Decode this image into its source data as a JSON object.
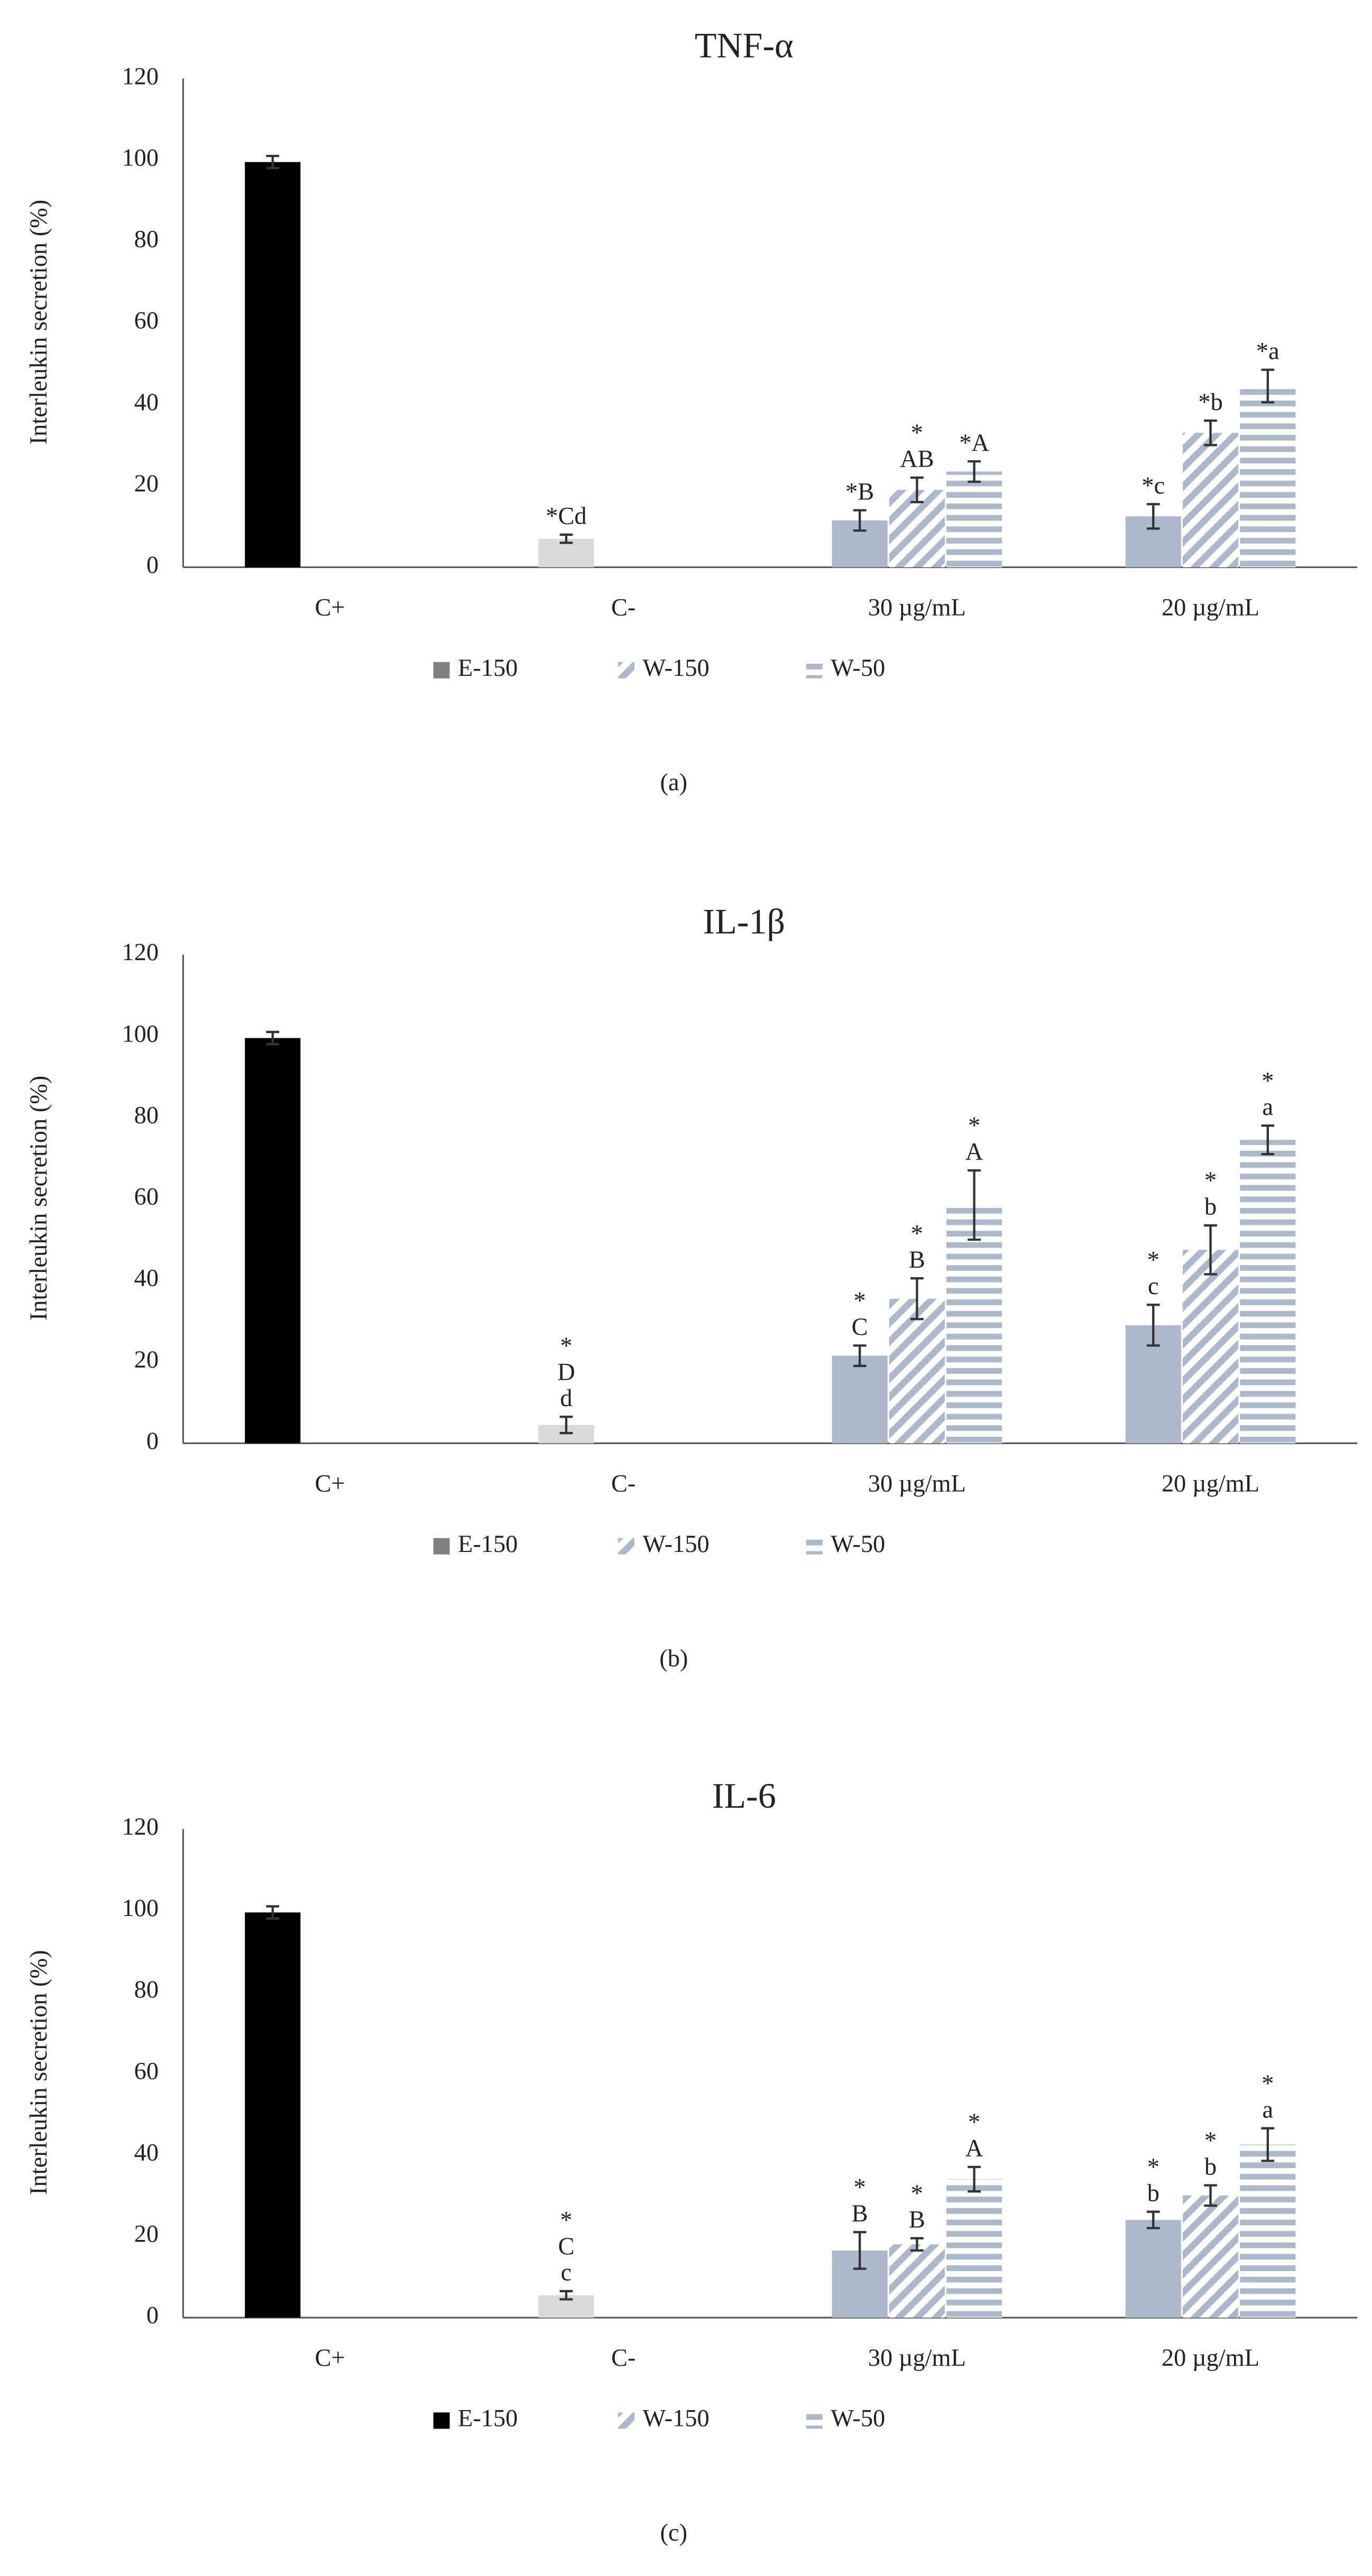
{
  "chart_data": [
    {
      "type": "bar",
      "title": "TNF-α",
      "ylabel": "Interleukin  secretion (%)",
      "caption": "(a)",
      "categories": [
        "C+",
        "C-",
        "30 µg/mL",
        "20 µg/mL"
      ],
      "ylim": [
        0,
        120
      ],
      "yticks": [
        0,
        20,
        40,
        60,
        80,
        100,
        120
      ],
      "grid": false,
      "series": [
        {
          "name": "E-150",
          "color": "#808080",
          "point_colors": [
            "#000000",
            "#d9d9d9",
            "#adb9ca",
            "#adb9ca"
          ],
          "pattern": "solid",
          "values": [
            99.5,
            7,
            11.5,
            12.5
          ],
          "errors": [
            1.5,
            1,
            2.5,
            3
          ],
          "labels": [
            null,
            [
              "*Cd"
            ],
            [
              "*B"
            ],
            [
              "*c"
            ]
          ]
        },
        {
          "name": "W-150",
          "color": "#adb9ca",
          "pattern": "diagonal",
          "values": [
            null,
            null,
            19,
            33
          ],
          "errors": [
            null,
            null,
            3,
            3
          ],
          "labels": [
            null,
            null,
            [
              "*",
              "AB"
            ],
            [
              "*b"
            ]
          ]
        },
        {
          "name": "W-50",
          "color": "#adb9ca",
          "pattern": "horizontal",
          "values": [
            null,
            null,
            23.5,
            44.5
          ],
          "errors": [
            null,
            null,
            2.5,
            4
          ],
          "labels": [
            null,
            null,
            [
              "*A"
            ],
            [
              "*a"
            ]
          ]
        }
      ]
    },
    {
      "type": "bar",
      "title": "IL-1β",
      "ylabel": "Interleukin  secretion (%)",
      "caption": "(b)",
      "categories": [
        "C+",
        "C-",
        "30 µg/mL",
        "20 µg/mL"
      ],
      "ylim": [
        0,
        120
      ],
      "yticks": [
        0,
        20,
        40,
        60,
        80,
        100,
        120
      ],
      "grid": false,
      "series": [
        {
          "name": "E-150",
          "color": "#808080",
          "point_colors": [
            "#000000",
            "#d9d9d9",
            "#adb9ca",
            "#adb9ca"
          ],
          "pattern": "solid",
          "values": [
            99.5,
            4.5,
            21.5,
            29
          ],
          "errors": [
            1.5,
            2,
            2.5,
            5
          ],
          "labels": [
            null,
            [
              "*",
              "D",
              "d"
            ],
            [
              "*",
              "C"
            ],
            [
              "*",
              "c"
            ]
          ]
        },
        {
          "name": "W-150",
          "color": "#adb9ca",
          "pattern": "diagonal",
          "values": [
            null,
            null,
            35.5,
            47.5
          ],
          "errors": [
            null,
            null,
            5,
            6
          ],
          "labels": [
            null,
            null,
            [
              "*",
              "B"
            ],
            [
              "*",
              "b"
            ]
          ]
        },
        {
          "name": "W-50",
          "color": "#adb9ca",
          "pattern": "horizontal",
          "values": [
            null,
            null,
            58.5,
            74.5
          ],
          "errors": [
            null,
            null,
            8.5,
            3.5
          ],
          "labels": [
            null,
            null,
            [
              "*",
              "A"
            ],
            [
              "*",
              "a"
            ]
          ]
        }
      ]
    },
    {
      "type": "bar",
      "title": "IL-6",
      "ylabel": "Interleukin secretion (%)",
      "caption": "(c)",
      "categories": [
        "C+",
        "C-",
        "30 µg/mL",
        "20 µg/mL"
      ],
      "ylim": [
        0,
        120
      ],
      "yticks": [
        0,
        20,
        40,
        60,
        80,
        100,
        120
      ],
      "grid": false,
      "series": [
        {
          "name": "E-150",
          "color": "#000000",
          "point_colors": [
            "#000000",
            "#d9d9d9",
            "#adb9ca",
            "#adb9ca"
          ],
          "pattern": "solid",
          "values": [
            99.5,
            5.5,
            16.5,
            24
          ],
          "errors": [
            1.5,
            1,
            4.5,
            2
          ],
          "labels": [
            null,
            [
              "*",
              "C",
              "c"
            ],
            [
              "*",
              "B"
            ],
            [
              "*",
              "b"
            ]
          ]
        },
        {
          "name": "W-150",
          "color": "#adb9ca",
          "pattern": "diagonal",
          "values": [
            null,
            null,
            18,
            30
          ],
          "errors": [
            null,
            null,
            1.5,
            2.5
          ],
          "labels": [
            null,
            null,
            [
              "*",
              "B"
            ],
            [
              "*",
              "b"
            ]
          ]
        },
        {
          "name": "W-50",
          "color": "#adb9ca",
          "pattern": "horizontal",
          "values": [
            null,
            null,
            34,
            42.5
          ],
          "errors": [
            null,
            null,
            3,
            4
          ],
          "labels": [
            null,
            null,
            [
              "*",
              "A"
            ],
            [
              "*",
              "a"
            ]
          ]
        }
      ]
    }
  ]
}
